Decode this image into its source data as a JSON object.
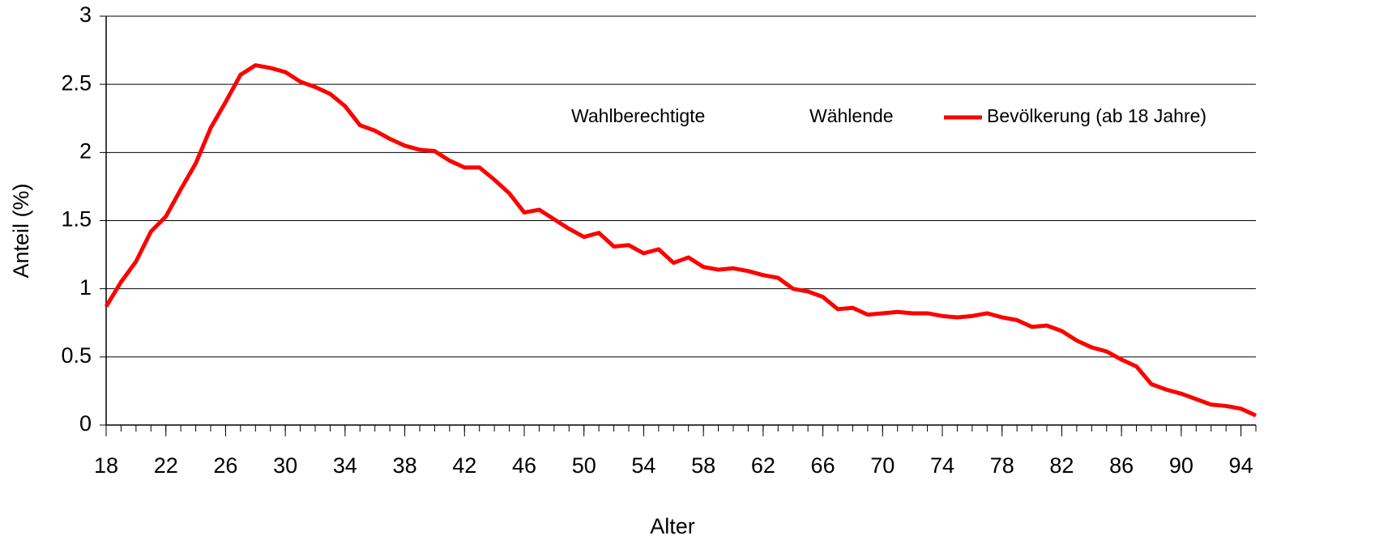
{
  "chart_data": {
    "type": "line",
    "x_label": "Alter",
    "y_label": "Anteil (%)",
    "x": [
      18,
      19,
      20,
      21,
      22,
      23,
      24,
      25,
      26,
      27,
      28,
      29,
      30,
      31,
      32,
      33,
      34,
      35,
      36,
      37,
      38,
      39,
      40,
      41,
      42,
      43,
      44,
      45,
      46,
      47,
      48,
      49,
      50,
      51,
      52,
      53,
      54,
      55,
      56,
      57,
      58,
      59,
      60,
      61,
      62,
      63,
      64,
      65,
      66,
      67,
      68,
      69,
      70,
      71,
      72,
      73,
      74,
      75,
      76,
      77,
      78,
      79,
      80,
      81,
      82,
      83,
      84,
      85,
      86,
      87,
      88,
      89,
      90,
      91,
      92,
      93,
      94,
      95
    ],
    "series": [
      {
        "name": "Wahlberechtigte",
        "color": "#ffffff",
        "values": [
          null,
          null,
          null,
          null,
          null,
          null,
          null,
          null,
          null,
          null,
          null,
          null,
          null,
          null,
          null,
          null,
          null,
          null,
          null,
          null,
          null,
          null,
          null,
          null,
          null,
          null,
          null,
          null,
          null,
          null,
          null,
          null,
          null,
          null,
          null,
          null,
          null,
          null,
          null,
          null,
          null,
          null,
          null,
          null,
          null,
          null,
          null,
          null,
          null,
          null,
          null,
          null,
          null,
          null,
          null,
          null,
          null,
          null,
          null,
          null,
          null,
          null,
          null,
          null,
          null,
          null,
          null,
          null,
          null,
          null,
          null,
          null,
          null,
          null,
          null,
          null,
          null,
          null
        ]
      },
      {
        "name": "Wählende",
        "color": "#ffffff",
        "values": [
          null,
          null,
          null,
          null,
          null,
          null,
          null,
          null,
          null,
          null,
          null,
          null,
          null,
          null,
          null,
          null,
          null,
          null,
          null,
          null,
          null,
          null,
          null,
          null,
          null,
          null,
          null,
          null,
          null,
          null,
          null,
          null,
          null,
          null,
          null,
          null,
          null,
          null,
          null,
          null,
          null,
          null,
          null,
          null,
          null,
          null,
          null,
          null,
          null,
          null,
          null,
          null,
          null,
          null,
          null,
          null,
          null,
          null,
          null,
          null,
          null,
          null,
          null,
          null,
          null,
          null,
          null,
          null,
          null,
          null,
          null,
          null,
          null,
          null,
          null,
          null,
          null,
          null
        ]
      },
      {
        "name": "Bevölkerung (ab 18 Jahre)",
        "color": "#ff0000",
        "values": [
          0.87,
          1.05,
          1.2,
          1.42,
          1.53,
          1.73,
          1.92,
          2.18,
          2.37,
          2.57,
          2.64,
          2.62,
          2.59,
          2.52,
          2.48,
          2.43,
          2.34,
          2.2,
          2.16,
          2.1,
          2.05,
          2.02,
          2.01,
          1.94,
          1.89,
          1.89,
          1.8,
          1.7,
          1.56,
          1.58,
          1.51,
          1.44,
          1.38,
          1.41,
          1.31,
          1.32,
          1.26,
          1.29,
          1.19,
          1.23,
          1.16,
          1.14,
          1.15,
          1.13,
          1.1,
          1.08,
          1.0,
          0.98,
          0.94,
          0.85,
          0.86,
          0.81,
          0.82,
          0.83,
          0.82,
          0.82,
          0.8,
          0.79,
          0.8,
          0.82,
          0.79,
          0.77,
          0.72,
          0.73,
          0.69,
          0.62,
          0.57,
          0.54,
          0.48,
          0.43,
          0.3,
          0.26,
          0.23,
          0.19,
          0.15,
          0.14,
          0.12,
          0.07
        ]
      }
    ],
    "xlim": [
      18,
      95
    ],
    "xticks": [
      18,
      22,
      26,
      30,
      34,
      38,
      42,
      46,
      50,
      54,
      58,
      62,
      66,
      70,
      74,
      78,
      82,
      86,
      90,
      94
    ],
    "ylim": [
      0,
      3
    ],
    "yticks": [
      0,
      0.5,
      1,
      1.5,
      2,
      2.5,
      3
    ],
    "grid": true,
    "legend": "top-right"
  }
}
